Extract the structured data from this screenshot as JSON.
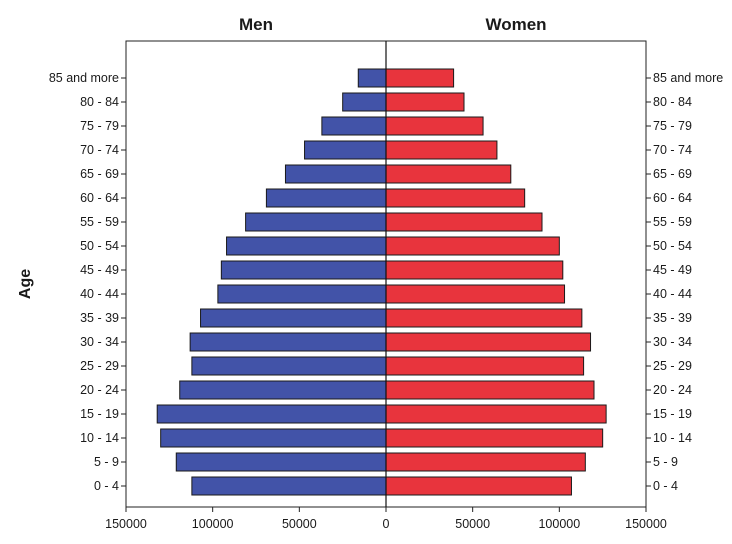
{
  "chart_data": {
    "type": "bar",
    "orientation": "horizontal",
    "layout": "population-pyramid",
    "ylabel": "Age",
    "categories": [
      "0 - 4",
      "5 - 9",
      "10 - 14",
      "15 - 19",
      "20 - 24",
      "25 - 29",
      "30 - 34",
      "35 - 39",
      "40 - 44",
      "45 - 49",
      "50 - 54",
      "55 - 59",
      "60 - 64",
      "65 - 69",
      "70 - 74",
      "75 - 79",
      "80 - 84",
      "85 and more"
    ],
    "series": [
      {
        "name": "Men",
        "color": "#4253a8",
        "values": [
          112000,
          121000,
          130000,
          132000,
          119000,
          112000,
          113000,
          107000,
          97000,
          95000,
          92000,
          81000,
          69000,
          58000,
          47000,
          37000,
          25000,
          16000
        ]
      },
      {
        "name": "Women",
        "color": "#e8343d",
        "values": [
          107000,
          115000,
          125000,
          127000,
          120000,
          114000,
          118000,
          113000,
          103000,
          102000,
          100000,
          90000,
          80000,
          72000,
          64000,
          56000,
          45000,
          39000
        ]
      }
    ],
    "xlim": [
      -150000,
      150000
    ],
    "xticks": [
      -150000,
      -100000,
      -50000,
      0,
      50000,
      100000,
      150000
    ],
    "xtick_labels": [
      "150000",
      "100000",
      "50000",
      "0",
      "50000",
      "100000",
      "150000"
    ],
    "grid": false,
    "legend": "none"
  }
}
